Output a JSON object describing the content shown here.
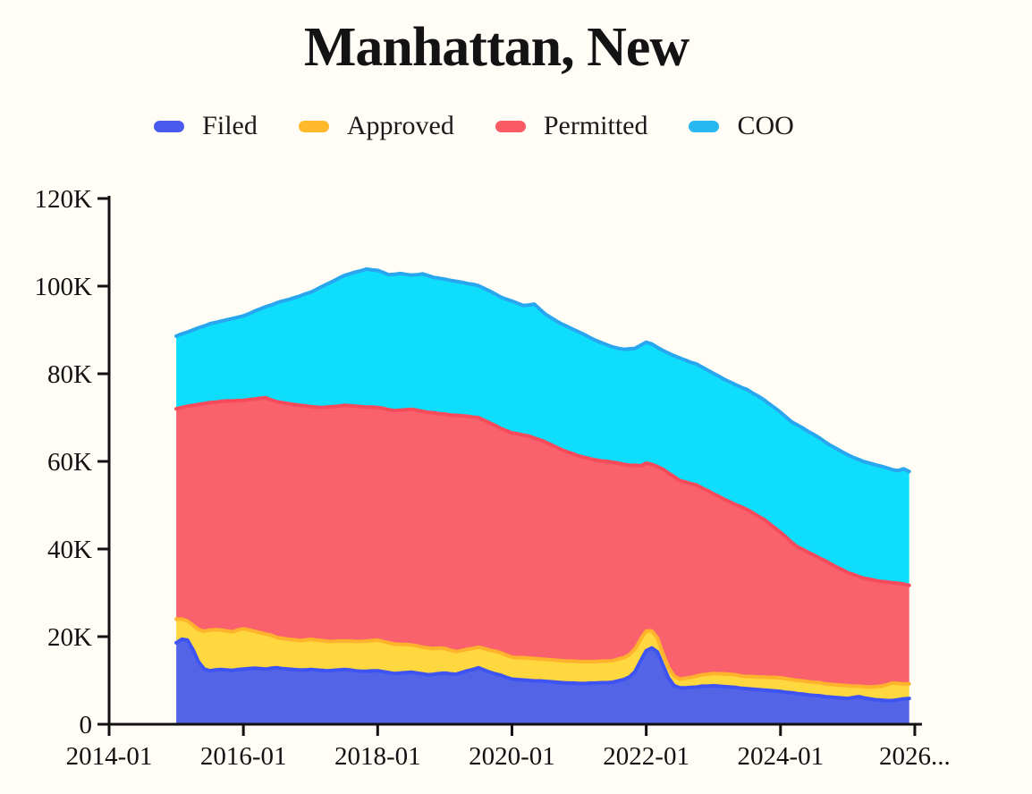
{
  "page": {
    "background": "#fffdf6"
  },
  "header": {
    "title": "Manhattan, New"
  },
  "legend": [
    {
      "label": "Filed",
      "color": "#4a5aee"
    },
    {
      "label": "Approved",
      "color": "#ffb92b"
    },
    {
      "label": "Permitted",
      "color": "#fa5a64"
    },
    {
      "label": "COO",
      "color": "#29b8f0"
    }
  ],
  "chart_data": {
    "type": "area",
    "stacked": true,
    "title": "Manhattan, New",
    "xlabel": "",
    "ylabel": "",
    "unit": "count",
    "values_scale": 1000,
    "x_start": "2015-01",
    "x_end": "2025-12",
    "x_interval": "monthly",
    "xlim": [
      "2014-01",
      "2026-01"
    ],
    "ylim": [
      0,
      120000
    ],
    "grid": false,
    "legend_position": "top",
    "x_tick_labels": [
      "2014-01",
      "2016-01",
      "2018-01",
      "2020-01",
      "2022-01",
      "2024-01",
      "2026..."
    ],
    "y_tick_labels": [
      "0",
      "20K",
      "40K",
      "60K",
      "80K",
      "100K",
      "120K"
    ],
    "series": [
      {
        "name": "Filed",
        "fill": "#5464e6",
        "stroke": "#3d54f2",
        "values": [
          18.6,
          19.4,
          19.2,
          17.0,
          14.2,
          12.6,
          12.2,
          12.4,
          12.5,
          12.4,
          12.3,
          12.5,
          12.6,
          12.7,
          12.8,
          12.7,
          12.6,
          12.8,
          12.9,
          12.7,
          12.6,
          12.5,
          12.4,
          12.4,
          12.5,
          12.4,
          12.3,
          12.2,
          12.3,
          12.4,
          12.5,
          12.4,
          12.2,
          12.1,
          12.1,
          12.2,
          12.2,
          12.0,
          11.8,
          11.6,
          11.7,
          11.8,
          11.9,
          11.7,
          11.5,
          11.3,
          11.4,
          11.6,
          11.7,
          11.5,
          11.4,
          11.8,
          12.2,
          12.5,
          12.9,
          12.4,
          11.9,
          11.5,
          11.2,
          10.7,
          10.3,
          10.2,
          10.1,
          10.0,
          9.9,
          9.9,
          9.8,
          9.7,
          9.6,
          9.5,
          9.4,
          9.4,
          9.3,
          9.3,
          9.4,
          9.4,
          9.5,
          9.5,
          9.6,
          9.9,
          10.2,
          10.8,
          12.0,
          14.5,
          16.8,
          17.4,
          16.5,
          13.5,
          10.5,
          8.8,
          8.3,
          8.3,
          8.4,
          8.5,
          8.7,
          8.7,
          8.8,
          8.7,
          8.6,
          8.5,
          8.4,
          8.2,
          8.1,
          8.0,
          7.9,
          7.8,
          7.7,
          7.6,
          7.5,
          7.3,
          7.2,
          7.0,
          6.9,
          6.7,
          6.6,
          6.5,
          6.3,
          6.2,
          6.1,
          6.0,
          5.9,
          6.1,
          6.3,
          6.0,
          5.8,
          5.6,
          5.5,
          5.4,
          5.4,
          5.6,
          5.8,
          5.9
        ]
      },
      {
        "name": "Approved",
        "fill": "#ffd73e",
        "stroke": "#ffb22c",
        "values": [
          5.4,
          4.6,
          4.4,
          5.6,
          7.4,
          8.6,
          9.3,
          9.2,
          9.0,
          8.9,
          8.8,
          9.0,
          9.2,
          8.8,
          8.4,
          8.2,
          8.0,
          7.5,
          6.9,
          6.9,
          6.8,
          6.8,
          6.7,
          6.8,
          6.9,
          6.8,
          6.8,
          6.7,
          6.6,
          6.6,
          6.5,
          6.6,
          6.7,
          6.8,
          6.9,
          6.9,
          7.0,
          6.9,
          6.8,
          6.7,
          6.5,
          6.4,
          6.2,
          6.2,
          6.1,
          6.1,
          5.9,
          5.8,
          5.6,
          5.4,
          5.2,
          5.0,
          4.9,
          4.8,
          4.7,
          4.9,
          5.0,
          5.2,
          5.1,
          5.1,
          5.0,
          5.0,
          5.1,
          5.1,
          5.1,
          5.0,
          5.0,
          5.0,
          5.0,
          5.0,
          5.0,
          5.0,
          5.0,
          5.0,
          4.9,
          4.9,
          4.9,
          4.9,
          4.9,
          5.0,
          5.0,
          5.1,
          5.2,
          4.9,
          4.5,
          3.9,
          3.2,
          2.6,
          2.4,
          2.2,
          2.0,
          2.2,
          2.3,
          2.5,
          2.6,
          2.7,
          2.8,
          2.8,
          2.9,
          2.9,
          2.9,
          2.8,
          2.8,
          2.9,
          2.9,
          3.0,
          3.0,
          3.1,
          3.1,
          3.1,
          3.0,
          3.0,
          3.0,
          3.0,
          3.0,
          3.0,
          2.9,
          2.9,
          2.9,
          2.9,
          2.9,
          2.6,
          2.4,
          2.6,
          2.7,
          3.0,
          3.2,
          3.6,
          4.0,
          3.7,
          3.4,
          3.3
        ]
      },
      {
        "name": "Permitted",
        "fill": "#f9616c",
        "stroke": "#f74b5c",
        "values": [
          48.0,
          48.3,
          49.0,
          50.2,
          51.4,
          52.0,
          51.9,
          51.9,
          52.2,
          52.5,
          52.7,
          52.4,
          52.1,
          52.6,
          53.0,
          53.5,
          53.9,
          53.7,
          53.8,
          53.8,
          53.8,
          53.7,
          53.7,
          53.5,
          53.1,
          53.2,
          53.2,
          53.5,
          53.6,
          53.6,
          53.8,
          53.7,
          53.7,
          53.6,
          53.4,
          53.3,
          53.1,
          53.2,
          53.2,
          53.3,
          53.5,
          53.6,
          53.8,
          53.8,
          53.8,
          53.8,
          53.8,
          53.5,
          53.5,
          53.7,
          53.9,
          53.6,
          53.2,
          52.8,
          52.4,
          52.1,
          51.9,
          51.5,
          51.2,
          51.2,
          51.2,
          51.1,
          50.8,
          50.7,
          50.3,
          50.0,
          49.6,
          49.1,
          48.6,
          48.1,
          47.7,
          47.3,
          46.9,
          46.6,
          46.3,
          46.0,
          45.7,
          45.6,
          45.3,
          44.7,
          44.1,
          43.2,
          41.9,
          39.6,
          38.3,
          38.0,
          39.1,
          42.1,
          44.4,
          45.5,
          45.3,
          44.8,
          44.2,
          43.6,
          42.6,
          41.9,
          41.0,
          40.5,
          39.8,
          39.3,
          38.8,
          38.6,
          38.1,
          37.4,
          36.7,
          36.0,
          35.1,
          34.1,
          33.2,
          32.3,
          31.3,
          30.5,
          30.0,
          29.5,
          29.0,
          28.4,
          28.1,
          27.5,
          26.9,
          26.4,
          25.8,
          25.5,
          25.0,
          24.7,
          24.6,
          24.2,
          23.9,
          23.5,
          22.9,
          22.9,
          22.8,
          22.5
        ]
      },
      {
        "name": "COO",
        "fill": "#0edefb",
        "stroke": "#28a6f0",
        "values": [
          16.6,
          16.8,
          16.9,
          17.2,
          17.5,
          17.7,
          18.0,
          18.2,
          18.3,
          18.5,
          18.8,
          19.0,
          19.3,
          19.6,
          20.1,
          20.4,
          20.8,
          21.7,
          22.6,
          23.2,
          23.7,
          24.3,
          24.9,
          25.5,
          26.1,
          26.8,
          27.6,
          28.1,
          28.6,
          29.2,
          29.6,
          30.1,
          30.6,
          31.0,
          31.5,
          31.3,
          31.3,
          31.0,
          30.8,
          31.1,
          31.2,
          30.9,
          30.6,
          30.9,
          31.4,
          31.2,
          30.9,
          30.9,
          30.8,
          30.7,
          30.6,
          30.5,
          30.3,
          30.3,
          30.1,
          30.1,
          30.1,
          30.0,
          30.0,
          30.0,
          30.1,
          29.8,
          29.6,
          29.9,
          30.6,
          29.8,
          29.2,
          29.0,
          28.8,
          28.7,
          28.6,
          28.4,
          28.3,
          28.0,
          27.6,
          27.3,
          27.0,
          26.6,
          26.3,
          26.2,
          26.3,
          26.6,
          26.7,
          27.5,
          27.6,
          27.5,
          27.2,
          27.1,
          27.4,
          27.6,
          28.0,
          27.8,
          27.7,
          27.6,
          27.6,
          27.5,
          27.5,
          27.4,
          27.4,
          27.4,
          27.4,
          27.3,
          27.4,
          27.3,
          27.4,
          27.3,
          27.3,
          27.4,
          27.4,
          27.4,
          27.5,
          27.8,
          27.7,
          27.6,
          27.5,
          27.4,
          27.1,
          27.0,
          27.0,
          26.9,
          26.9,
          26.7,
          26.7,
          26.6,
          26.5,
          26.4,
          26.3,
          26.0,
          25.8,
          25.7,
          26.3,
          26.0
        ]
      }
    ]
  }
}
